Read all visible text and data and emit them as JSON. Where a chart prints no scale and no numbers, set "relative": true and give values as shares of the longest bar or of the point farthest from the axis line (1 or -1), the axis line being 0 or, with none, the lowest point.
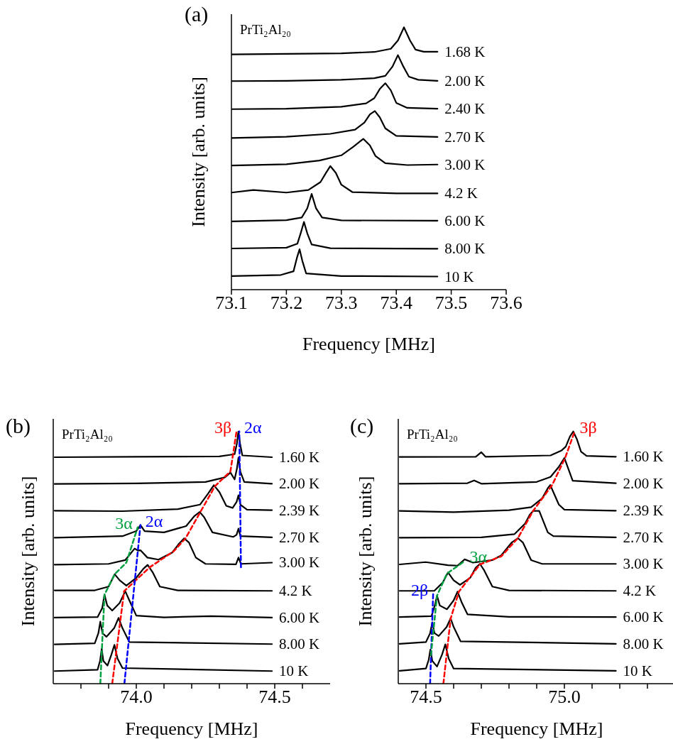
{
  "chart_data": [
    {
      "type": "line",
      "title": "(a)",
      "xlabel": "Frequency [MHz]",
      "ylabel": "Intensity [arb. units]",
      "relative": true,
      "xlim": [
        73.1,
        73.6
      ],
      "xticks": [
        73.1,
        73.2,
        73.3,
        73.4,
        73.5,
        73.6
      ],
      "annotations": [
        "PrTi₂Al₂₀"
      ],
      "series": [
        {
          "name": "1.68 K",
          "color": "#000000",
          "x": [
            73.1,
            73.2,
            73.3,
            73.36,
            73.39,
            73.403,
            73.414,
            73.425,
            73.435,
            73.45,
            73.475
          ],
          "values": [
            0.897,
            0.899,
            0.901,
            0.906,
            0.918,
            0.95,
            1.0,
            0.95,
            0.915,
            0.907,
            0.907
          ]
        },
        {
          "name": "2.00 K",
          "color": "#000000",
          "x": [
            73.1,
            73.2,
            73.3,
            73.36,
            73.38,
            73.393,
            73.403,
            73.413,
            73.423,
            73.44,
            73.475
          ],
          "values": [
            0.795,
            0.796,
            0.8,
            0.806,
            0.815,
            0.85,
            0.894,
            0.85,
            0.812,
            0.8,
            0.796
          ]
        },
        {
          "name": "2.40 K",
          "color": "#000000",
          "x": [
            73.1,
            73.2,
            73.3,
            73.345,
            73.36,
            73.37,
            73.38,
            73.39,
            73.4,
            73.42,
            73.475
          ],
          "values": [
            0.688,
            0.69,
            0.697,
            0.71,
            0.73,
            0.765,
            0.787,
            0.76,
            0.712,
            0.693,
            0.69
          ]
        },
        {
          "name": "2.70 K",
          "color": "#000000",
          "x": [
            73.1,
            73.2,
            73.28,
            73.325,
            73.342,
            73.352,
            73.361,
            73.37,
            73.38,
            73.4,
            73.475
          ],
          "values": [
            0.578,
            0.583,
            0.594,
            0.61,
            0.637,
            0.668,
            0.681,
            0.657,
            0.615,
            0.586,
            0.582
          ]
        },
        {
          "name": "3.00 K",
          "color": "#000000",
          "x": [
            73.1,
            73.2,
            73.26,
            73.3,
            73.322,
            73.34,
            73.352,
            73.362,
            73.38,
            73.42,
            73.475
          ],
          "values": [
            0.473,
            0.478,
            0.492,
            0.512,
            0.545,
            0.575,
            0.55,
            0.51,
            0.482,
            0.475,
            0.477
          ]
        },
        {
          "name": "4.2 K",
          "color": "#000000",
          "x": [
            73.1,
            73.14,
            73.2,
            73.24,
            73.262,
            73.272,
            73.28,
            73.29,
            73.3,
            73.32,
            73.4,
            73.475
          ],
          "values": [
            0.37,
            0.38,
            0.37,
            0.38,
            0.41,
            0.445,
            0.471,
            0.445,
            0.4,
            0.372,
            0.367,
            0.367
          ]
        },
        {
          "name": "6.00 K",
          "color": "#000000",
          "x": [
            73.1,
            73.2,
            73.228,
            73.238,
            73.246,
            73.254,
            73.265,
            73.3,
            73.475
          ],
          "values": [
            0.26,
            0.265,
            0.275,
            0.31,
            0.365,
            0.31,
            0.275,
            0.264,
            0.263
          ]
        },
        {
          "name": "8.00 K",
          "color": "#000000",
          "x": [
            73.1,
            73.2,
            73.22,
            73.226,
            73.232,
            73.238,
            73.246,
            73.28,
            73.475
          ],
          "values": [
            0.157,
            0.16,
            0.175,
            0.215,
            0.258,
            0.215,
            0.172,
            0.158,
            0.156
          ]
        },
        {
          "name": "10 K",
          "color": "#000000",
          "x": [
            73.1,
            73.19,
            73.213,
            73.219,
            73.224,
            73.229,
            73.236,
            73.3,
            73.475
          ],
          "values": [
            0.052,
            0.056,
            0.07,
            0.12,
            0.154,
            0.11,
            0.062,
            0.052,
            0.05
          ]
        }
      ]
    },
    {
      "type": "line",
      "title": "(b)",
      "xlabel": "Frequency [MHz]",
      "ylabel": "Intensity [arb. units]",
      "relative": true,
      "xlim": [
        73.7,
        74.7
      ],
      "xticks": [
        {
          "value": 73.8,
          "label": null
        },
        {
          "value": 73.9,
          "label": null
        },
        {
          "value": 74,
          "label": "74.0"
        },
        {
          "value": 74.1,
          "label": null
        },
        {
          "value": 74.2,
          "label": null
        },
        {
          "value": 74.3,
          "label": null
        },
        {
          "value": 74.4,
          "label": null
        },
        74.5,
        {
          "value": 74.6,
          "label": null
        }
      ],
      "annotations": [
        "PrTi₂Al₂₀"
      ],
      "series": [
        {
          "name": "1.60 K",
          "color": "#000000",
          "x": [
            73.705,
            74.0,
            74.3,
            74.355,
            74.363,
            74.369,
            74.375,
            74.383,
            74.49
          ],
          "values": [
            0.898,
            0.9,
            0.901,
            0.91,
            0.95,
            1.0,
            0.95,
            0.905,
            0.898
          ]
        },
        {
          "name": "2.00 K",
          "color": "#000000",
          "x": [
            73.705,
            74.0,
            74.25,
            74.32,
            74.34,
            74.355,
            74.363,
            74.369,
            74.376,
            74.39,
            74.49
          ],
          "values": [
            0.792,
            0.794,
            0.8,
            0.818,
            0.837,
            0.81,
            0.85,
            0.896,
            0.84,
            0.8,
            0.793
          ]
        },
        {
          "name": "2.39 K",
          "color": "#000000",
          "x": [
            73.705,
            73.95,
            74.15,
            74.23,
            74.26,
            74.28,
            74.3,
            74.325,
            74.348,
            74.362,
            74.369,
            74.376,
            74.4,
            74.49
          ],
          "values": [
            0.686,
            0.684,
            0.692,
            0.71,
            0.755,
            0.787,
            0.76,
            0.705,
            0.697,
            0.72,
            0.747,
            0.71,
            0.69,
            0.688
          ]
        },
        {
          "name": "2.70 K",
          "color": "#000000",
          "x": [
            73.705,
            73.95,
            74.0,
            74.015,
            74.03,
            74.1,
            74.18,
            74.21,
            74.229,
            74.245,
            74.275,
            74.35,
            74.362,
            74.369,
            74.376,
            74.49
          ],
          "values": [
            0.579,
            0.585,
            0.605,
            0.629,
            0.605,
            0.6,
            0.625,
            0.665,
            0.681,
            0.66,
            0.6,
            0.582,
            0.59,
            0.615,
            0.585,
            0.58
          ]
        },
        {
          "name": "3.00 K",
          "color": "#000000",
          "x": [
            73.705,
            73.9,
            73.96,
            73.994,
            74.005,
            74.015,
            74.04,
            74.08,
            74.13,
            74.155,
            74.173,
            74.19,
            74.215,
            74.25,
            74.36,
            74.369,
            74.378,
            74.49
          ],
          "values": [
            0.472,
            0.475,
            0.49,
            0.536,
            0.528,
            0.529,
            0.5,
            0.492,
            0.52,
            0.556,
            0.576,
            0.56,
            0.5,
            0.475,
            0.473,
            0.5,
            0.475,
            0.48
          ]
        },
        {
          "name": "4.2 K",
          "color": "#000000",
          "x": [
            73.705,
            73.85,
            73.9,
            73.922,
            73.94,
            73.964,
            74.0,
            74.025,
            74.041,
            74.06,
            74.085,
            74.15,
            74.49
          ],
          "values": [
            0.37,
            0.37,
            0.385,
            0.434,
            0.41,
            0.389,
            0.42,
            0.455,
            0.471,
            0.44,
            0.385,
            0.37,
            0.368
          ]
        },
        {
          "name": "6.00 K",
          "color": "#000000",
          "x": [
            73.705,
            73.86,
            73.877,
            73.885,
            73.895,
            73.913,
            73.94,
            73.96,
            73.975,
            74.0,
            74.1,
            74.27,
            74.49
          ],
          "values": [
            0.262,
            0.264,
            0.3,
            0.353,
            0.31,
            0.29,
            0.32,
            0.367,
            0.33,
            0.27,
            0.263,
            0.268,
            0.262
          ]
        },
        {
          "name": "8.00 K",
          "color": "#000000",
          "x": [
            73.705,
            73.85,
            73.863,
            73.87,
            73.878,
            73.892,
            73.92,
            73.936,
            73.95,
            73.975,
            74.49
          ],
          "values": [
            0.156,
            0.16,
            0.2,
            0.246,
            0.2,
            0.186,
            0.22,
            0.261,
            0.22,
            0.165,
            0.157
          ]
        },
        {
          "name": "10 K",
          "color": "#000000",
          "x": [
            73.705,
            73.86,
            73.869,
            73.875,
            73.881,
            73.896,
            73.91,
            73.921,
            73.932,
            73.95,
            74.49
          ],
          "values": [
            0.05,
            0.055,
            0.09,
            0.138,
            0.09,
            0.072,
            0.115,
            0.154,
            0.1,
            0.062,
            0.05
          ]
        },
        {
          "type": "line",
          "name": "3α",
          "line_style": "dashed",
          "color": "#00a040",
          "x": [
            73.87,
            73.885,
            73.922,
            73.964,
            74.005
          ],
          "values": [
            0,
            0.353,
            0.434,
            0.48,
            0.62
          ]
        },
        {
          "type": "line",
          "name": "3β",
          "line_style": "dashed",
          "color": "#ff0000",
          "x": [
            73.913,
            73.956,
            74.049,
            74.135,
            74.177,
            74.284,
            74.34,
            74.362
          ],
          "values": [
            0,
            0.367,
            0.462,
            0.525,
            0.575,
            0.783,
            0.842,
            1.0
          ]
        },
        {
          "type": "line",
          "name": "2α",
          "line_style": "dashed",
          "color": "#0000ff",
          "x": [
            73.957,
            74.015
          ],
          "values": [
            0,
            0.629
          ]
        },
        {
          "type": "line",
          "name": "2α",
          "line_style": "dashed",
          "color": "#0000ff",
          "x": [
            74.378,
            74.372
          ],
          "values": [
            0.462,
            1.0
          ]
        }
      ]
    },
    {
      "type": "line",
      "title": "(c)",
      "xlabel": "Frequency [MHz]",
      "ylabel": "Intensity [arb. units]",
      "relative": true,
      "xlim": [
        74.4,
        75.4
      ],
      "xticks": [
        74.5,
        {
          "value": 74.6,
          "label": null
        },
        {
          "value": 74.7,
          "label": null
        },
        {
          "value": 74.8,
          "label": null
        },
        {
          "value": 74.9,
          "label": null
        },
        {
          "value": 75,
          "label": "75.0"
        },
        {
          "value": 75.1,
          "label": null
        },
        {
          "value": 75.2,
          "label": null
        },
        {
          "value": 75.3,
          "label": null
        }
      ],
      "annotations": [
        "PrTi₂Al₂₀"
      ],
      "series": [
        {
          "name": "1.60 K",
          "color": "#000000",
          "x": [
            74.405,
            74.68,
            74.7,
            74.715,
            74.95,
            74.99,
            75.005,
            75.02,
            75.032,
            75.045,
            75.06,
            75.08,
            75.186
          ],
          "values": [
            0.899,
            0.9,
            0.918,
            0.9,
            0.905,
            0.925,
            0.94,
            0.98,
            1.0,
            0.97,
            0.92,
            0.903,
            0.9
          ]
        },
        {
          "name": "2.00 K",
          "color": "#000000",
          "x": [
            74.405,
            74.65,
            74.674,
            74.7,
            74.9,
            74.95,
            74.98,
            75.0,
            75.015,
            75.03,
            75.186
          ],
          "values": [
            0.793,
            0.795,
            0.806,
            0.793,
            0.8,
            0.82,
            0.86,
            0.895,
            0.85,
            0.805,
            0.795
          ]
        },
        {
          "name": "2.39 K",
          "color": "#000000",
          "x": [
            74.405,
            74.6,
            74.8,
            74.88,
            74.92,
            74.94,
            74.949,
            74.96,
            74.98,
            75.0,
            75.186
          ],
          "values": [
            0.685,
            0.68,
            0.688,
            0.7,
            0.735,
            0.775,
            0.788,
            0.76,
            0.71,
            0.69,
            0.686
          ]
        },
        {
          "name": "2.70 K",
          "color": "#000000",
          "x": [
            74.405,
            74.7,
            74.82,
            74.858,
            74.875,
            74.887,
            74.909,
            74.92,
            74.94,
            74.96,
            75.186
          ],
          "values": [
            0.579,
            0.58,
            0.593,
            0.635,
            0.67,
            0.685,
            0.685,
            0.655,
            0.6,
            0.585,
            0.58
          ]
        },
        {
          "name": "3.00 K",
          "color": "#000000",
          "x": [
            74.405,
            74.499,
            74.58,
            74.614,
            74.64,
            74.67,
            74.74,
            74.772,
            74.81,
            74.832,
            74.85,
            74.88,
            74.92,
            75.186
          ],
          "values": [
            0.473,
            0.482,
            0.47,
            0.468,
            0.493,
            0.48,
            0.49,
            0.509,
            0.56,
            0.577,
            0.56,
            0.49,
            0.475,
            0.475
          ]
        },
        {
          "name": "4.2 K",
          "color": "#000000",
          "x": [
            74.405,
            74.53,
            74.56,
            74.58,
            74.6,
            74.623,
            74.66,
            74.68,
            74.695,
            74.71,
            74.74,
            74.8,
            75.186
          ],
          "values": [
            0.368,
            0.368,
            0.4,
            0.441,
            0.41,
            0.392,
            0.42,
            0.46,
            0.475,
            0.45,
            0.385,
            0.37,
            0.368
          ]
        },
        {
          "name": "6.00 K",
          "color": "#000000",
          "x": [
            74.405,
            74.52,
            74.532,
            74.54,
            74.55,
            74.576,
            74.6,
            74.614,
            74.63,
            74.65,
            74.8,
            75.186
          ],
          "values": [
            0.264,
            0.268,
            0.31,
            0.349,
            0.31,
            0.295,
            0.33,
            0.365,
            0.32,
            0.275,
            0.265,
            0.264
          ]
        },
        {
          "name": "8.00 K",
          "color": "#000000",
          "x": [
            74.405,
            74.5,
            74.515,
            74.523,
            74.531,
            74.546,
            74.575,
            74.589,
            74.6,
            74.625,
            75.186
          ],
          "values": [
            0.158,
            0.165,
            0.2,
            0.243,
            0.2,
            0.189,
            0.225,
            0.259,
            0.225,
            0.168,
            0.158
          ]
        },
        {
          "name": "10 K",
          "color": "#000000",
          "x": [
            74.405,
            74.5,
            74.51,
            74.516,
            74.523,
            74.54,
            74.558,
            74.57,
            74.582,
            74.6,
            75.186
          ],
          "values": [
            0.051,
            0.06,
            0.095,
            0.135,
            0.09,
            0.068,
            0.115,
            0.156,
            0.1,
            0.06,
            0.051
          ]
        },
        {
          "type": "line",
          "name": "2β",
          "line_style": "dashed",
          "color": "#0000ff",
          "x": [
            74.515,
            74.526
          ],
          "values": [
            0,
            0.356
          ]
        },
        {
          "type": "line",
          "name": "3α",
          "line_style": "dashed",
          "color": "#00a040",
          "x": [
            74.518,
            74.54,
            74.576,
            74.64
          ],
          "values": [
            0.113,
            0.349,
            0.437,
            0.486
          ]
        },
        {
          "type": "line",
          "name": "3β",
          "line_style": "dashed",
          "color": "#ff0000",
          "x": [
            74.563,
            74.589,
            74.619,
            74.695,
            74.772,
            74.832,
            74.887,
            74.956,
            75.003,
            75.037
          ],
          "values": [
            0,
            0.257,
            0.365,
            0.473,
            0.505,
            0.577,
            0.685,
            0.788,
            0.896,
            1.0
          ]
        }
      ]
    }
  ]
}
